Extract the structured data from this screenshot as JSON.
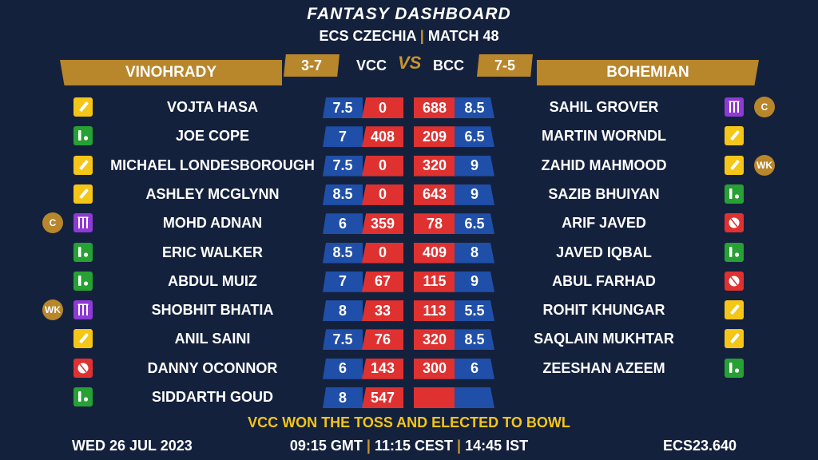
{
  "header": {
    "title": "FANTASY DASHBOARD",
    "league": "ECS CZECHIA",
    "match": "MATCH 48"
  },
  "teams": {
    "left": {
      "name": "VINOHRADY",
      "abbr": "VCC",
      "record": "3-7"
    },
    "right": {
      "name": "BOHEMIAN",
      "abbr": "BCC",
      "record": "7-5"
    },
    "vs": "VS"
  },
  "left_players": [
    {
      "name": "VOJTA HASA",
      "role": "bat",
      "badge": "",
      "credit": "7.5",
      "points": "0"
    },
    {
      "name": "JOE COPE",
      "role": "ar",
      "badge": "",
      "credit": "7",
      "points": "408"
    },
    {
      "name": "MICHAEL LONDESBOROUGH",
      "role": "bat",
      "badge": "",
      "credit": "7.5",
      "points": "0"
    },
    {
      "name": "ASHLEY MCGLYNN",
      "role": "bat",
      "badge": "",
      "credit": "8.5",
      "points": "0"
    },
    {
      "name": "MOHD ADNAN",
      "role": "wk",
      "badge": "C",
      "credit": "6",
      "points": "359"
    },
    {
      "name": "ERIC WALKER",
      "role": "ar",
      "badge": "",
      "credit": "8.5",
      "points": "0"
    },
    {
      "name": "ABDUL MUIZ",
      "role": "ar",
      "badge": "",
      "credit": "7",
      "points": "67"
    },
    {
      "name": "SHOBHIT BHATIA",
      "role": "wk",
      "badge": "WK",
      "credit": "8",
      "points": "33"
    },
    {
      "name": "ANIL SAINI",
      "role": "bat",
      "badge": "",
      "credit": "7.5",
      "points": "76"
    },
    {
      "name": "DANNY OCONNOR",
      "role": "bowl",
      "badge": "",
      "credit": "6",
      "points": "143"
    },
    {
      "name": "SIDDARTH GOUD",
      "role": "ar",
      "badge": "",
      "credit": "8",
      "points": "547"
    }
  ],
  "right_players": [
    {
      "name": "SAHIL GROVER",
      "role": "wk",
      "badge": "C",
      "credit": "8.5",
      "points": "688"
    },
    {
      "name": "MARTIN WORNDL",
      "role": "bat",
      "badge": "",
      "credit": "6.5",
      "points": "209"
    },
    {
      "name": "ZAHID MAHMOOD",
      "role": "bat",
      "badge": "WK",
      "credit": "9",
      "points": "320"
    },
    {
      "name": "SAZIB BHUIYAN",
      "role": "ar",
      "badge": "",
      "credit": "9",
      "points": "643"
    },
    {
      "name": "ARIF JAVED",
      "role": "bowl",
      "badge": "",
      "credit": "6.5",
      "points": "78"
    },
    {
      "name": "JAVED IQBAL",
      "role": "ar",
      "badge": "",
      "credit": "8",
      "points": "409"
    },
    {
      "name": "ABUL FARHAD",
      "role": "bowl",
      "badge": "",
      "credit": "9",
      "points": "115"
    },
    {
      "name": "ROHIT KHUNGAR",
      "role": "bat",
      "badge": "",
      "credit": "5.5",
      "points": "113"
    },
    {
      "name": "SAQLAIN MUKHTAR",
      "role": "bat",
      "badge": "",
      "credit": "8.5",
      "points": "320"
    },
    {
      "name": "ZEESHAN AZEEM",
      "role": "ar",
      "badge": "",
      "credit": "6",
      "points": "300"
    },
    {
      "name": "",
      "role": "",
      "badge": "",
      "credit": "",
      "points": ""
    }
  ],
  "toss": "VCC WON THE TOSS AND ELECTED TO BOWL",
  "footer": {
    "date": "WED 26 JUL 2023",
    "time_gmt": "09:15 GMT",
    "time_cest": "11:15 CEST",
    "time_ist": "14:45 IST",
    "code": "ECS23.640"
  },
  "colors": {
    "background": "#14213d",
    "gold": "#b8862b",
    "credit_blue": "#1f4fa8",
    "points_red": "#e03131",
    "bat_yellow": "#f5c518",
    "allrounder_green": "#27a034",
    "wicketkeeper_purple": "#8e3ad6",
    "bowler_red": "#e03131"
  }
}
